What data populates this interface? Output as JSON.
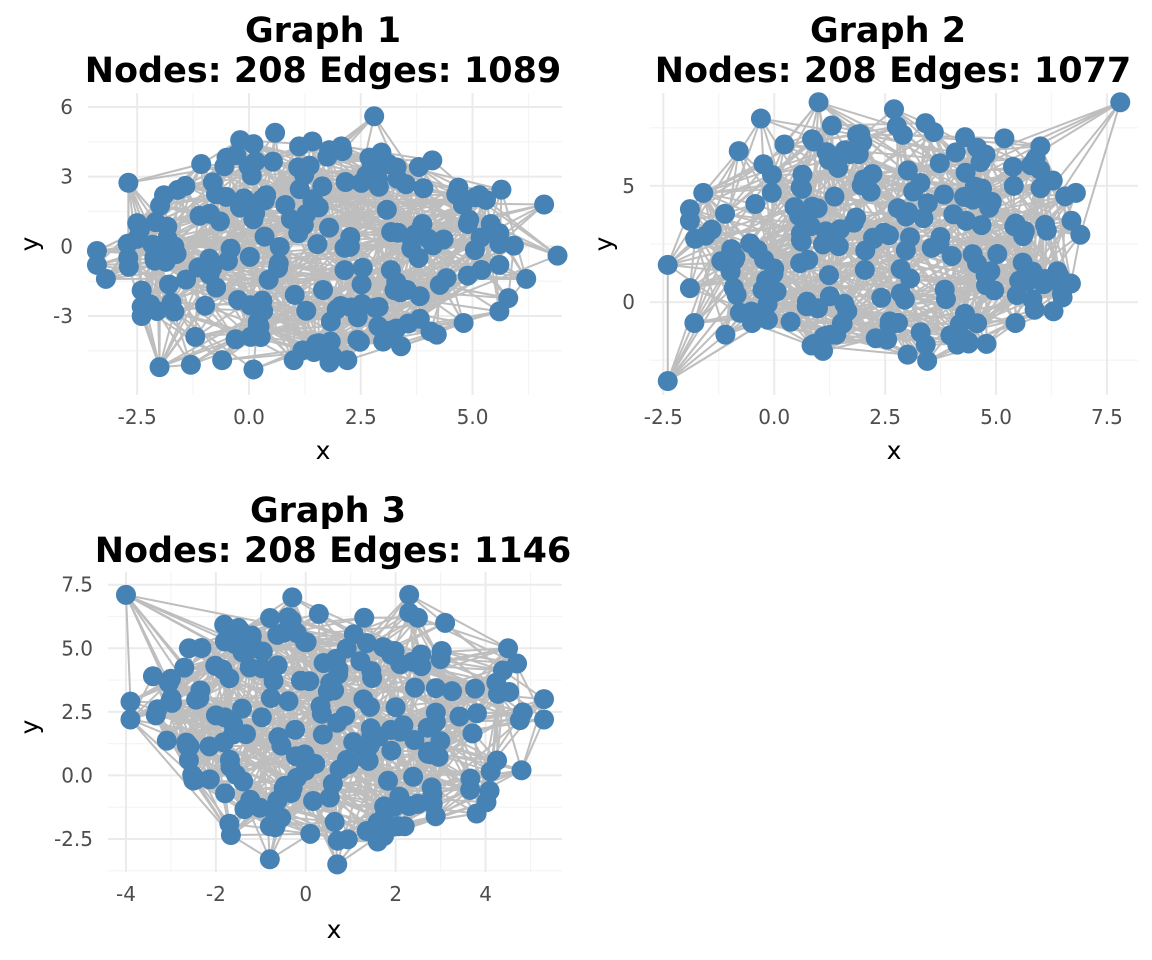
{
  "chart_data": [
    {
      "type": "scatter",
      "title_line1": "Graph 1",
      "title_line2": "Nodes: 208 Edges: 1089",
      "xlabel": "x",
      "ylabel": "y",
      "xlim": [
        -3.6,
        7.0
      ],
      "ylim": [
        -6.4,
        6.6
      ],
      "xticks": [
        -2.5,
        0.0,
        2.5,
        5.0
      ],
      "xtick_labels": [
        "-2.5",
        "0.0",
        "2.5",
        "5.0"
      ],
      "yticks": [
        -3,
        0,
        3,
        6
      ],
      "ytick_labels": [
        "-3",
        "0",
        "3",
        "6"
      ],
      "grid": true,
      "node_color": "#4682b4",
      "edge_color": "#bebebe",
      "nodes": 208,
      "edges": 1089,
      "seed": 11,
      "points": [
        [
          2.8,
          5.6
        ],
        [
          0.1,
          4.4
        ],
        [
          4.1,
          3.7
        ],
        [
          -3.4,
          -0.2
        ],
        [
          -3.4,
          -0.8
        ],
        [
          -3.2,
          -1.4
        ],
        [
          -2.5,
          1.0
        ],
        [
          -2.4,
          -2.6
        ],
        [
          -2.4,
          -3.0
        ],
        [
          -1.9,
          2.2
        ],
        [
          -2.0,
          -5.2
        ],
        [
          -1.3,
          -5.1
        ],
        [
          0.1,
          -5.3
        ],
        [
          -0.6,
          -4.9
        ],
        [
          1.0,
          -4.9
        ],
        [
          1.8,
          -5.0
        ],
        [
          2.2,
          -4.9
        ],
        [
          3.4,
          -4.3
        ],
        [
          4.2,
          -3.8
        ],
        [
          4.8,
          -3.3
        ],
        [
          5.6,
          -2.8
        ],
        [
          6.2,
          -1.4
        ],
        [
          6.6,
          1.8
        ],
        [
          6.9,
          -0.4
        ],
        [
          5.3,
          2.0
        ],
        [
          5.6,
          0.1
        ],
        [
          5.6,
          -0.8
        ],
        [
          3.9,
          2.5
        ],
        [
          3.3,
          3.4
        ],
        [
          1.1,
          3.4
        ],
        [
          -1.2,
          -3.9
        ],
        [
          -0.3,
          -4.0
        ],
        [
          1.5,
          -4.2
        ],
        [
          3.0,
          -4.1
        ],
        [
          -2.4,
          -1.9
        ],
        [
          -2.7,
          -0.5
        ]
      ]
    },
    {
      "type": "scatter",
      "title_line1": "Graph 2",
      "title_line2": "Nodes: 208 Edges: 1077",
      "xlabel": "x",
      "ylabel": "y",
      "xlim": [
        -2.8,
        8.2
      ],
      "ylim": [
        -4.0,
        9.0
      ],
      "xticks": [
        -2.5,
        0.0,
        2.5,
        5.0,
        7.5
      ],
      "xtick_labels": [
        "-2.5",
        "0.0",
        "2.5",
        "5.0",
        "7.5"
      ],
      "yticks": [
        0,
        5
      ],
      "ytick_labels": [
        "0",
        "5"
      ],
      "grid": true,
      "node_color": "#4682b4",
      "edge_color": "#bebebe",
      "nodes": 208,
      "edges": 1077,
      "seed": 29,
      "points": [
        [
          7.8,
          8.6
        ],
        [
          -2.4,
          -3.4
        ],
        [
          -2.4,
          1.6
        ],
        [
          -1.8,
          -0.9
        ],
        [
          -1.9,
          0.6
        ],
        [
          -1.1,
          -1.4
        ],
        [
          -0.3,
          7.9
        ],
        [
          1.0,
          8.6
        ],
        [
          2.7,
          8.3
        ],
        [
          6.0,
          6.7
        ],
        [
          6.8,
          4.7
        ],
        [
          6.9,
          2.9
        ],
        [
          6.5,
          0.2
        ],
        [
          4.3,
          -0.5
        ],
        [
          3.3,
          -1.3
        ],
        [
          1.1,
          -2.1
        ],
        [
          0.9,
          -1.8
        ],
        [
          -0.5,
          -0.9
        ],
        [
          -1.9,
          3.5
        ],
        [
          -1.9,
          4.0
        ],
        [
          -0.8,
          6.5
        ],
        [
          4.3,
          7.1
        ],
        [
          5.4,
          5.0
        ],
        [
          5.6,
          1.7
        ],
        [
          1.3,
          7.6
        ],
        [
          2.9,
          7.2
        ],
        [
          1.4,
          -1.4
        ],
        [
          2.6,
          -1.0
        ],
        [
          -1.6,
          4.7
        ],
        [
          6.7,
          3.5
        ]
      ]
    },
    {
      "type": "scatter",
      "title_line1": "Graph 3",
      "title_line2": "Nodes: 208 Edges: 1146",
      "xlabel": "x",
      "ylabel": "y",
      "xlim": [
        -4.4,
        5.7
      ],
      "ylim": [
        -3.8,
        8.0
      ],
      "xticks": [
        -4,
        -2,
        0,
        2,
        4
      ],
      "xtick_labels": [
        "-4",
        "-2",
        "0",
        "2",
        "4"
      ],
      "yticks": [
        -2.5,
        0.0,
        2.5,
        5.0,
        7.5
      ],
      "ytick_labels": [
        "-2.5",
        "0.0",
        "2.5",
        "5.0",
        "7.5"
      ],
      "grid": true,
      "node_color": "#4682b4",
      "edge_color": "#bebebe",
      "nodes": 208,
      "edges": 1146,
      "seed": 47,
      "points": [
        [
          -4.0,
          7.1
        ],
        [
          -3.9,
          2.9
        ],
        [
          -3.9,
          2.2
        ],
        [
          -3.4,
          3.9
        ],
        [
          -3.3,
          2.6
        ],
        [
          -2.6,
          5.0
        ],
        [
          -2.6,
          0.6
        ],
        [
          -2.5,
          -0.2
        ],
        [
          -1.7,
          -1.9
        ],
        [
          -1.5,
          5.8
        ],
        [
          -0.8,
          -3.3
        ],
        [
          -0.8,
          -2.0
        ],
        [
          -0.3,
          7.0
        ],
        [
          0.7,
          -3.5
        ],
        [
          1.6,
          -2.6
        ],
        [
          2.2,
          -2.0
        ],
        [
          2.3,
          7.1
        ],
        [
          3.1,
          6.0
        ],
        [
          3.8,
          -1.5
        ],
        [
          4.5,
          5.0
        ],
        [
          4.7,
          4.4
        ],
        [
          5.3,
          3.0
        ],
        [
          5.3,
          2.2
        ],
        [
          4.8,
          0.2
        ],
        [
          2.3,
          6.4
        ],
        [
          1.3,
          6.2
        ],
        [
          -0.2,
          5.6
        ],
        [
          -1.2,
          5.5
        ],
        [
          -3.0,
          3.8
        ],
        [
          0.1,
          -2.3
        ]
      ]
    }
  ]
}
